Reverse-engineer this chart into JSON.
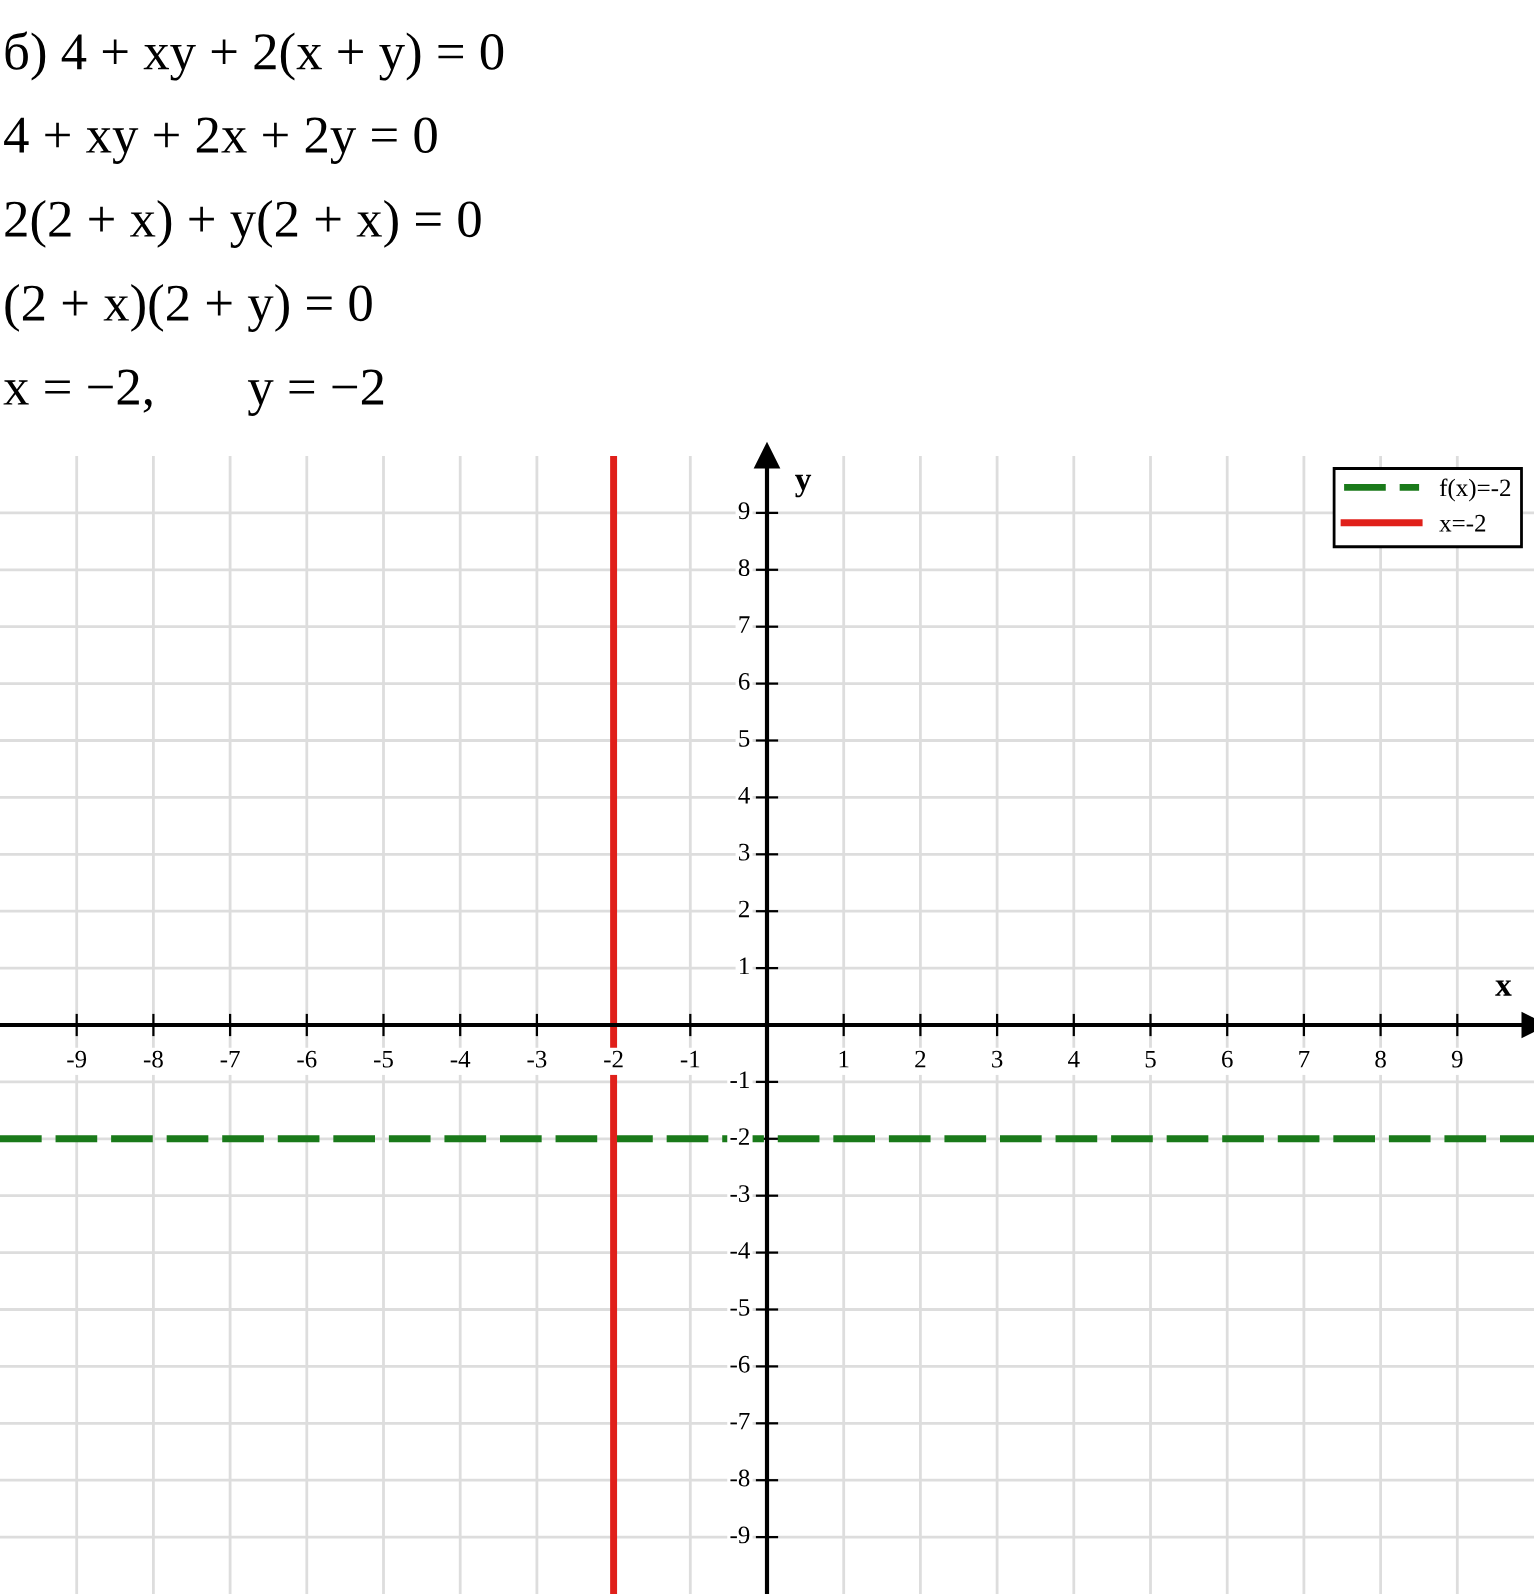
{
  "chart_data": {
    "type": "line",
    "annotations": [
      "б) 4 + xy + 2(x + y) = 0",
      "4 + xy + 2x + 2y = 0",
      "2(2 + x) + y(2 + x) = 0",
      "(2 + x)(2 + y) = 0",
      "x = −2,       y = −2"
    ],
    "xlabel": "x",
    "ylabel": "y",
    "series": [
      {
        "name": "f(x)=-2",
        "color": "#1a7a1a",
        "x": [
          -10,
          10
        ],
        "values": [
          -2,
          -2
        ],
        "line_style": "dashed"
      },
      {
        "name": "x=-2",
        "color": "#e0201a",
        "x": [
          -2,
          -2
        ],
        "values": [
          -10,
          10
        ],
        "line_style": "solid"
      }
    ],
    "xlim": [
      -10,
      10
    ],
    "ylim": [
      -10,
      10
    ],
    "xticks": [
      -9,
      -8,
      -7,
      -6,
      -5,
      -4,
      -3,
      -2,
      -1,
      1,
      2,
      3,
      4,
      5,
      6,
      7,
      8,
      9
    ],
    "yticks": [
      -9,
      -8,
      -7,
      -6,
      -5,
      -4,
      -3,
      -2,
      -1,
      1,
      2,
      3,
      4,
      5,
      6,
      7,
      8,
      9
    ],
    "grid": true,
    "legend": "top right",
    "marker": "none"
  }
}
